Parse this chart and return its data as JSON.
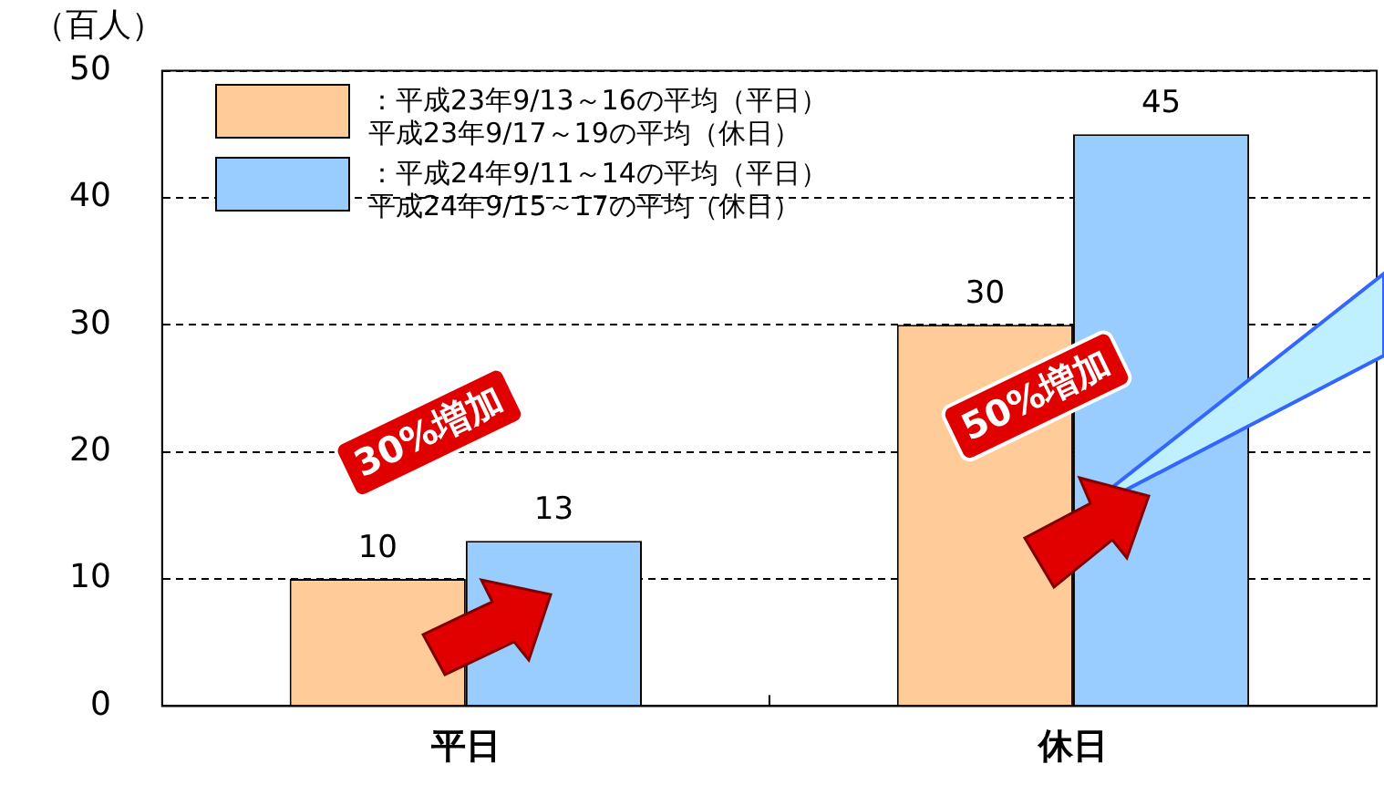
{
  "chart_data": {
    "type": "bar",
    "ylabel": "（百人）",
    "categories": [
      "平日",
      "休日"
    ],
    "series": [
      {
        "name": "：平成23年9/13～16の平均（平日）平成23年9/17～19の平均（休日）",
        "color": "#ffcc99",
        "values": [
          10,
          30
        ]
      },
      {
        "name": "：平成24年9/11～14の平均（平日）平成24年9/15～17の平均（休日）",
        "color": "#99ccff",
        "values": [
          13,
          45
        ]
      }
    ],
    "ylim": [
      0,
      50
    ],
    "yticks": [
      0,
      10,
      20,
      30,
      40,
      50
    ],
    "grid": "y",
    "line_style": "dashed",
    "legend": "top left",
    "data_labels": true,
    "annotations": [
      "30%増加",
      "50%増加"
    ]
  }
}
